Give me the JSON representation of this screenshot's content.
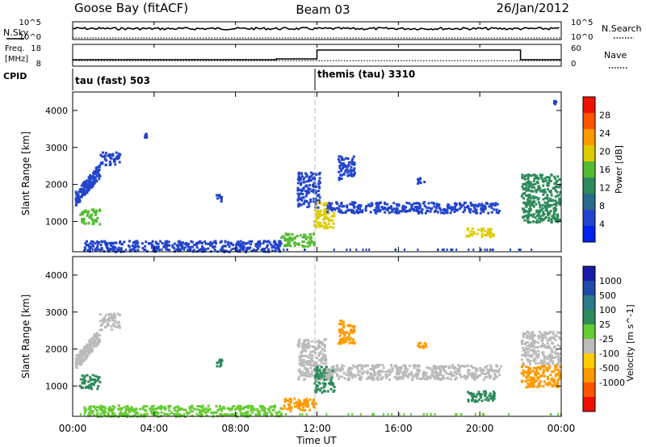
{
  "header": {
    "site": "Goose Bay (fitACF)",
    "beam": "Beam 03",
    "date": "26/Jan/2012"
  },
  "top_panels": {
    "nsky_label": "N.Sky",
    "nsearch_label": "N.Search",
    "freq_label_1": "Freq.",
    "freq_label_2": "[MHz]",
    "nave_label": "Nave",
    "cpid_label": "CPID",
    "noise_ticks_left": [
      "10^5",
      "10^0"
    ],
    "noise_ticks_right": [
      "10^5",
      "10^0"
    ],
    "freq_ticks": [
      "18",
      "8"
    ],
    "nave_ticks": [
      "60",
      "0"
    ]
  },
  "cpid": {
    "segments": [
      {
        "label": "tau (fast) 503",
        "start_hour": 0,
        "end_hour": 12
      },
      {
        "label": "themis (tau) 3310",
        "start_hour": 12,
        "end_hour": 24
      }
    ]
  },
  "colors": {
    "power": [
      "#0022ee",
      "#2244cc",
      "#2a6a8a",
      "#2e8a5a",
      "#55bb33",
      "#ddcc00",
      "#ff9900",
      "#ff5500",
      "#ee1100"
    ],
    "velocity": [
      "#1a1aa8",
      "#1f4aa8",
      "#2a7a8a",
      "#2e8a5a",
      "#66cc33",
      "#bbbbbb",
      "#ffcc00",
      "#ff9900",
      "#ff5500",
      "#ee1100"
    ],
    "ground_scatter": "#bbbbbb"
  },
  "chart_data": [
    {
      "type": "line",
      "panel": "noise",
      "x_unit": "hour UT",
      "series": [
        {
          "name": "N.Sky",
          "style": "solid",
          "x": [
            0,
            2,
            4,
            6,
            8,
            10,
            12,
            14,
            16,
            18,
            20,
            22,
            24
          ],
          "values": [
            1500,
            1400,
            1300,
            1300,
            1400,
            1350,
            1300,
            1300,
            1400,
            1400,
            1350,
            1300,
            1400
          ]
        },
        {
          "name": "N.Search",
          "style": "dotted",
          "x": [
            0,
            24
          ],
          "values": [
            1,
            1
          ]
        }
      ],
      "ylim": [
        1,
        100000
      ],
      "yscale": "log"
    },
    {
      "type": "line",
      "panel": "freq_nave",
      "x_unit": "hour UT",
      "series": [
        {
          "name": "Freq. [MHz]",
          "style": "solid",
          "x": [
            0,
            10,
            10,
            12,
            12,
            22,
            22,
            24
          ],
          "values": [
            10.8,
            10.8,
            11.2,
            11.2,
            15.6,
            15.6,
            10.8,
            10.8
          ]
        },
        {
          "name": "Nave",
          "style": "dotted",
          "x": [
            0,
            24
          ],
          "values": [
            14,
            14
          ]
        }
      ],
      "ylim_freq": [
        8,
        18
      ],
      "ylim_nave": [
        0,
        60
      ]
    },
    {
      "type": "heatmap",
      "panel": "power",
      "xlabel": "",
      "ylabel": "Slant Range [km]",
      "colorbar_label": "Power [dB]",
      "colorbar_ticks": [
        4,
        8,
        12,
        16,
        20,
        24,
        28
      ],
      "xlim": [
        0,
        24
      ],
      "ylim": [
        180,
        4500
      ],
      "yticks": [
        1000,
        2000,
        3000,
        4000
      ],
      "cells": [
        {
          "t0": 0.1,
          "t1": 1.3,
          "r0": 1450,
          "r1": 2550,
          "v": 7,
          "shape": "diag_up"
        },
        {
          "t0": 0.3,
          "t1": 1.3,
          "r0": 950,
          "r1": 1350,
          "v": 15
        },
        {
          "t0": 1.3,
          "t1": 2.3,
          "r0": 2550,
          "r1": 2900,
          "v": 6
        },
        {
          "t0": 0.5,
          "t1": 10.2,
          "r0": 200,
          "r1": 500,
          "v": 6
        },
        {
          "t0": 10.2,
          "t1": 11.9,
          "r0": 350,
          "r1": 700,
          "v": 17
        },
        {
          "t0": 11.0,
          "t1": 12.1,
          "r0": 1400,
          "r1": 2350,
          "v": 7
        },
        {
          "t0": 11.8,
          "t1": 12.8,
          "r0": 850,
          "r1": 1550,
          "v": 20
        },
        {
          "t0": 12.4,
          "t1": 21.0,
          "r0": 1250,
          "r1": 1550,
          "v": 7
        },
        {
          "t0": 13.0,
          "t1": 13.8,
          "r0": 2150,
          "r1": 2800,
          "v": 6
        },
        {
          "t0": 19.3,
          "t1": 20.7,
          "r0": 600,
          "r1": 850,
          "v": 20
        },
        {
          "t0": 22.0,
          "t1": 23.9,
          "r0": 1000,
          "r1": 2300,
          "v": 14
        },
        {
          "t0": 7.0,
          "t1": 7.3,
          "r0": 1550,
          "r1": 1750,
          "v": 7
        },
        {
          "t0": 16.9,
          "t1": 17.3,
          "r0": 2050,
          "r1": 2200,
          "v": 6
        },
        {
          "t0": 3.5,
          "t1": 3.6,
          "r0": 3300,
          "r1": 3400,
          "v": 6
        },
        {
          "t0": 23.6,
          "t1": 23.7,
          "r0": 4200,
          "r1": 4300,
          "v": 6
        }
      ]
    },
    {
      "type": "heatmap",
      "panel": "velocity",
      "xlabel": "Time UT",
      "ylabel": "Slant Range [km]",
      "colorbar_label": "Velocity [m s^-1]",
      "colorbar_ticks": [
        1000,
        500,
        100,
        25,
        -25,
        -100,
        -500,
        -1000
      ],
      "xlim": [
        0,
        24
      ],
      "ylim": [
        180,
        4500
      ],
      "xticks": [
        "00:00",
        "04:00",
        "08:00",
        "12:00",
        "16:00",
        "20:00",
        "00:00"
      ],
      "yticks": [
        1000,
        2000,
        3000,
        4000
      ],
      "cells": [
        {
          "t0": 0.1,
          "t1": 1.3,
          "r0": 1450,
          "r1": 2550,
          "v": 0,
          "shape": "diag_up",
          "gs": true
        },
        {
          "t0": 1.3,
          "t1": 2.3,
          "r0": 2550,
          "r1": 3000,
          "v": 0,
          "gs": true
        },
        {
          "t0": 0.3,
          "t1": 1.3,
          "r0": 950,
          "r1": 1350,
          "v": 120
        },
        {
          "t0": 0.5,
          "t1": 10.2,
          "r0": 200,
          "r1": 500,
          "v": 60
        },
        {
          "t0": 10.2,
          "t1": 11.9,
          "r0": 350,
          "r1": 700,
          "v": -120
        },
        {
          "t0": 11.0,
          "t1": 12.4,
          "r0": 1200,
          "r1": 2300,
          "v": 0,
          "gs": true
        },
        {
          "t0": 11.8,
          "t1": 12.8,
          "r0": 850,
          "r1": 1550,
          "v": 120
        },
        {
          "t0": 12.4,
          "t1": 21.0,
          "r0": 1200,
          "r1": 1600,
          "v": 0,
          "gs": true
        },
        {
          "t0": 13.0,
          "t1": 13.8,
          "r0": 2150,
          "r1": 2800,
          "v": -300
        },
        {
          "t0": 19.3,
          "t1": 20.7,
          "r0": 600,
          "r1": 900,
          "v": 120
        },
        {
          "t0": 22.0,
          "t1": 23.9,
          "r0": 1600,
          "r1": 2500,
          "v": 0,
          "gs": true
        },
        {
          "t0": 22.0,
          "t1": 23.9,
          "r0": 1000,
          "r1": 1600,
          "v": -300
        },
        {
          "t0": 7.0,
          "t1": 7.3,
          "r0": 1550,
          "r1": 1750,
          "v": 120
        },
        {
          "t0": 16.9,
          "t1": 17.3,
          "r0": 2050,
          "r1": 2200,
          "v": -200
        }
      ]
    }
  ]
}
